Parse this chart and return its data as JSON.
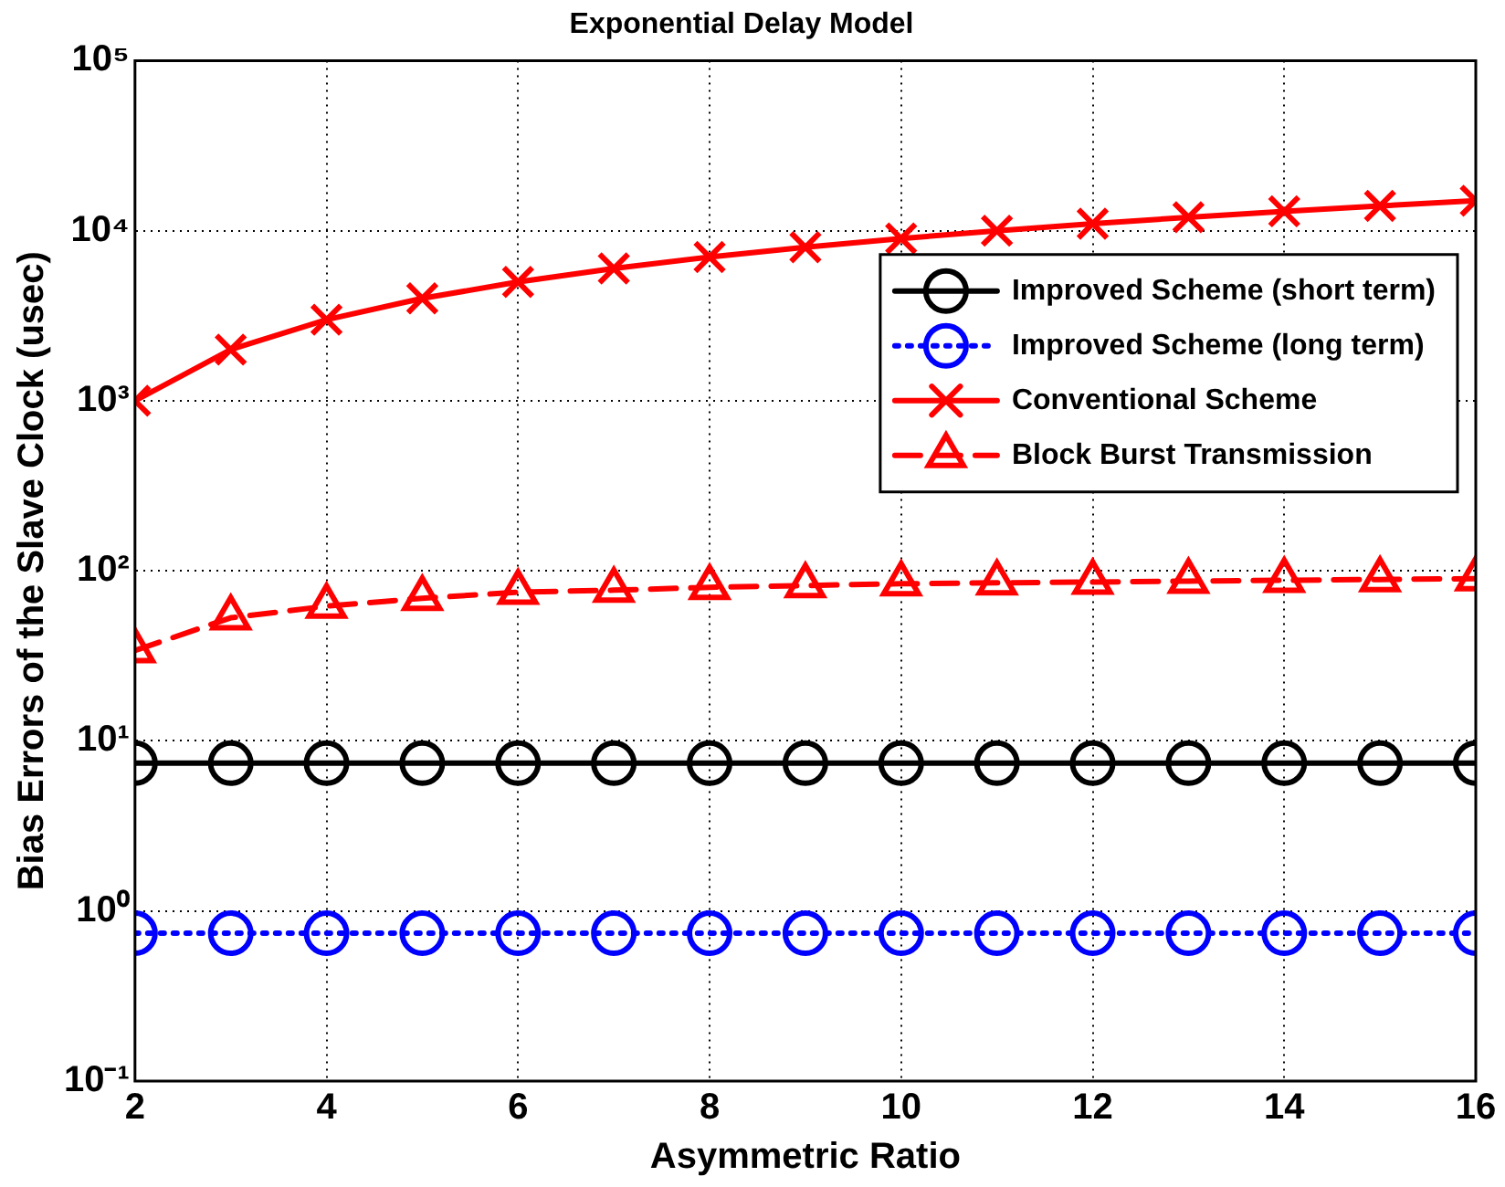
{
  "chart_data": {
    "type": "line",
    "title": "Exponential Delay Model",
    "xlabel": "Asymmetric Ratio",
    "ylabel": "Bias Errors of the Slave Clock (usec)",
    "x": [
      2,
      3,
      4,
      5,
      6,
      7,
      8,
      9,
      10,
      11,
      12,
      13,
      14,
      15,
      16
    ],
    "series": [
      {
        "name": "Improved Scheme (short term)",
        "color": "#000000",
        "marker": "circle",
        "line_style": "solid",
        "values": [
          7.4,
          7.4,
          7.4,
          7.4,
          7.4,
          7.4,
          7.4,
          7.4,
          7.4,
          7.4,
          7.4,
          7.4,
          7.4,
          7.4,
          7.4
        ]
      },
      {
        "name": "Improved Scheme (long term)",
        "color": "#0000ff",
        "marker": "circle",
        "line_style": "dotted",
        "values": [
          0.74,
          0.74,
          0.74,
          0.74,
          0.74,
          0.74,
          0.74,
          0.74,
          0.74,
          0.74,
          0.74,
          0.74,
          0.74,
          0.74,
          0.74
        ]
      },
      {
        "name": "Conventional Scheme",
        "color": "#ff0000",
        "marker": "cross",
        "line_style": "solid",
        "values": [
          1000,
          2000,
          3000,
          4000,
          5000,
          6000,
          7000,
          8000,
          9000,
          10000,
          11000,
          12000,
          13000,
          14000,
          15000
        ]
      },
      {
        "name": "Block Burst Transmission",
        "color": "#ff0000",
        "marker": "triangle",
        "line_style": "dashed",
        "values": [
          34,
          53,
          62,
          69,
          75,
          77,
          80,
          82,
          84,
          85,
          86,
          87,
          88,
          89,
          90
        ]
      }
    ],
    "log": "y",
    "xlim": [
      2,
      16
    ],
    "xticks": [
      2,
      4,
      6,
      8,
      10,
      12,
      14,
      16
    ],
    "ylim": [
      0.1,
      100000
    ],
    "yticks": [
      {
        "value": 0.1,
        "label": "10⁻¹"
      },
      {
        "value": 1,
        "label": "10⁰"
      },
      {
        "value": 10,
        "label": "10¹"
      },
      {
        "value": 100,
        "label": "10²"
      },
      {
        "value": 1000,
        "label": "10³"
      },
      {
        "value": 10000,
        "label": "10⁴"
      },
      {
        "value": 100000,
        "label": "10⁵"
      }
    ],
    "grid": true,
    "legend": "right"
  }
}
